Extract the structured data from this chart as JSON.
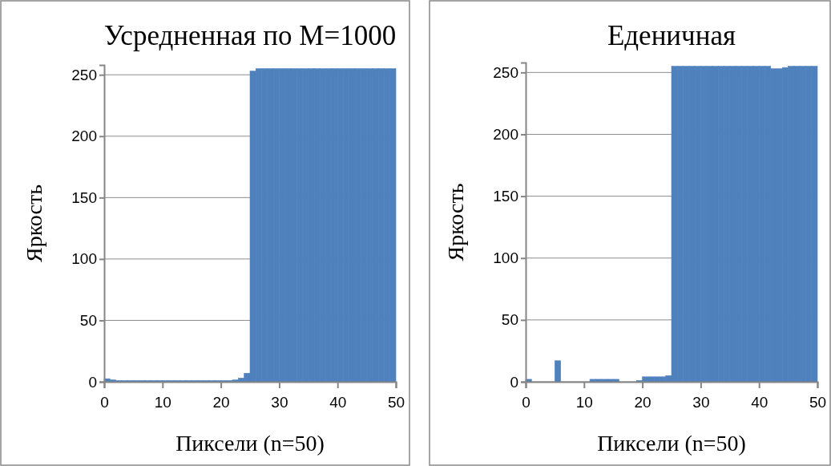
{
  "chart_data": [
    {
      "type": "histogram",
      "title": "Усредненная по M=1000",
      "xlabel": "Пиксели (n=50)",
      "ylabel": "Яркость",
      "color": "#4f81bd",
      "grid": "y",
      "bins": [
        0,
        1,
        2,
        3,
        4,
        5,
        6,
        7,
        8,
        9,
        10,
        11,
        12,
        13,
        14,
        15,
        16,
        17,
        18,
        19,
        20,
        21,
        22,
        23,
        24,
        25,
        26,
        27,
        28,
        29,
        30,
        31,
        32,
        33,
        34,
        35,
        36,
        37,
        38,
        39,
        40,
        41,
        42,
        43,
        44,
        45,
        46,
        47,
        48,
        49,
        50
      ],
      "values": [
        2.5,
        1.5,
        1,
        1,
        1,
        1,
        1,
        1,
        1,
        1,
        1,
        1,
        1,
        1,
        1,
        1,
        1,
        1,
        1,
        1,
        1,
        1,
        1.5,
        3,
        7,
        253,
        255,
        255,
        255,
        255,
        255,
        255,
        255,
        255,
        255,
        255,
        255,
        255,
        255,
        255,
        255,
        255,
        255,
        255,
        255,
        255,
        255,
        255,
        255,
        255
      ],
      "xlim": [
        0,
        50
      ],
      "xticks": [
        0,
        10,
        20,
        30,
        40,
        50
      ],
      "ylim": [
        0,
        258
      ],
      "yticks": [
        0,
        50,
        100,
        150,
        200,
        250
      ]
    },
    {
      "type": "histogram",
      "title": "Еденичная",
      "xlabel": "Пиксели (n=50)",
      "ylabel": "Яркость",
      "color": "#4f81bd",
      "grid": "y",
      "bins": [
        0,
        1,
        2,
        3,
        4,
        5,
        6,
        7,
        8,
        9,
        10,
        11,
        12,
        13,
        14,
        15,
        16,
        17,
        18,
        19,
        20,
        21,
        22,
        23,
        24,
        25,
        26,
        27,
        28,
        29,
        30,
        31,
        32,
        33,
        34,
        35,
        36,
        37,
        38,
        39,
        40,
        41,
        42,
        43,
        44,
        45,
        46,
        47,
        48,
        49,
        50
      ],
      "values": [
        2,
        0,
        0,
        0,
        0,
        17,
        0,
        0,
        0,
        0,
        0,
        2,
        2,
        2,
        2,
        2,
        0,
        0,
        0,
        1,
        4,
        4,
        4,
        4,
        5,
        255,
        255,
        255,
        255,
        255,
        255,
        255,
        255,
        255,
        255,
        255,
        255,
        255,
        255,
        255,
        255,
        255,
        253,
        253,
        254,
        255,
        255,
        255,
        255,
        255
      ],
      "xlim": [
        0,
        50
      ],
      "xticks": [
        0,
        10,
        20,
        30,
        40,
        50
      ],
      "ylim": [
        0,
        258
      ],
      "yticks": [
        0,
        50,
        100,
        150,
        200,
        250
      ]
    }
  ]
}
